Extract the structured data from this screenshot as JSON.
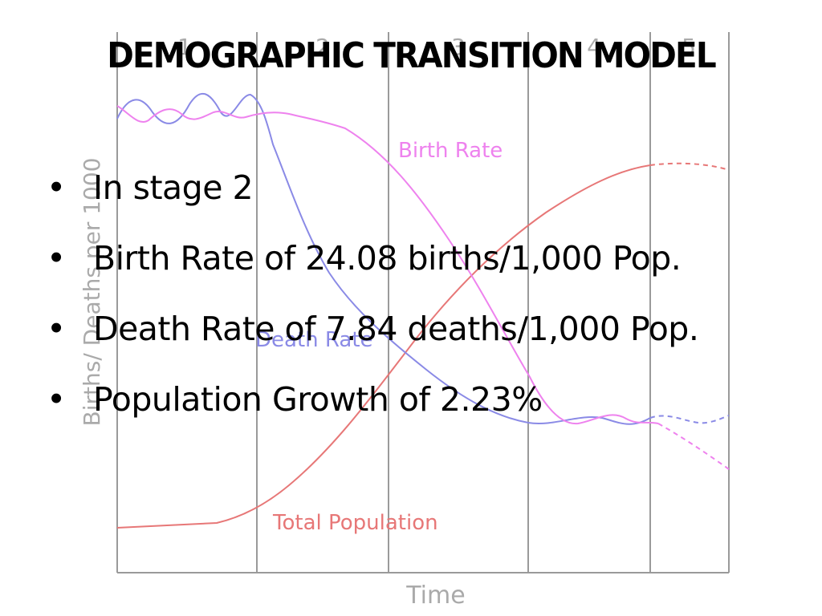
{
  "slide": {
    "title": "DEMOGRAPHIC TRANSITION MODEL",
    "bullets": [
      "In stage 2",
      "Birth Rate of 24.08 births/1,000 Pop.",
      "Death Rate of 7.84 deaths/1,000 Pop.",
      "Population Growth of 2.23%"
    ],
    "bullet_symbol": "•"
  },
  "diagram": {
    "stages": [
      "1",
      "2",
      "3",
      "4",
      "5"
    ],
    "y_axis_label": "Births/ Deaths per 1000",
    "x_axis_label": "Time",
    "curve_labels": {
      "birth_rate": "Birth Rate",
      "death_rate": "Death Rate",
      "total_population": "Total Population"
    },
    "colors": {
      "birth_rate": "#ee82ee",
      "death_rate": "#8a8ae6",
      "total_population": "#e77777",
      "frame": "#9a9a9a"
    }
  }
}
